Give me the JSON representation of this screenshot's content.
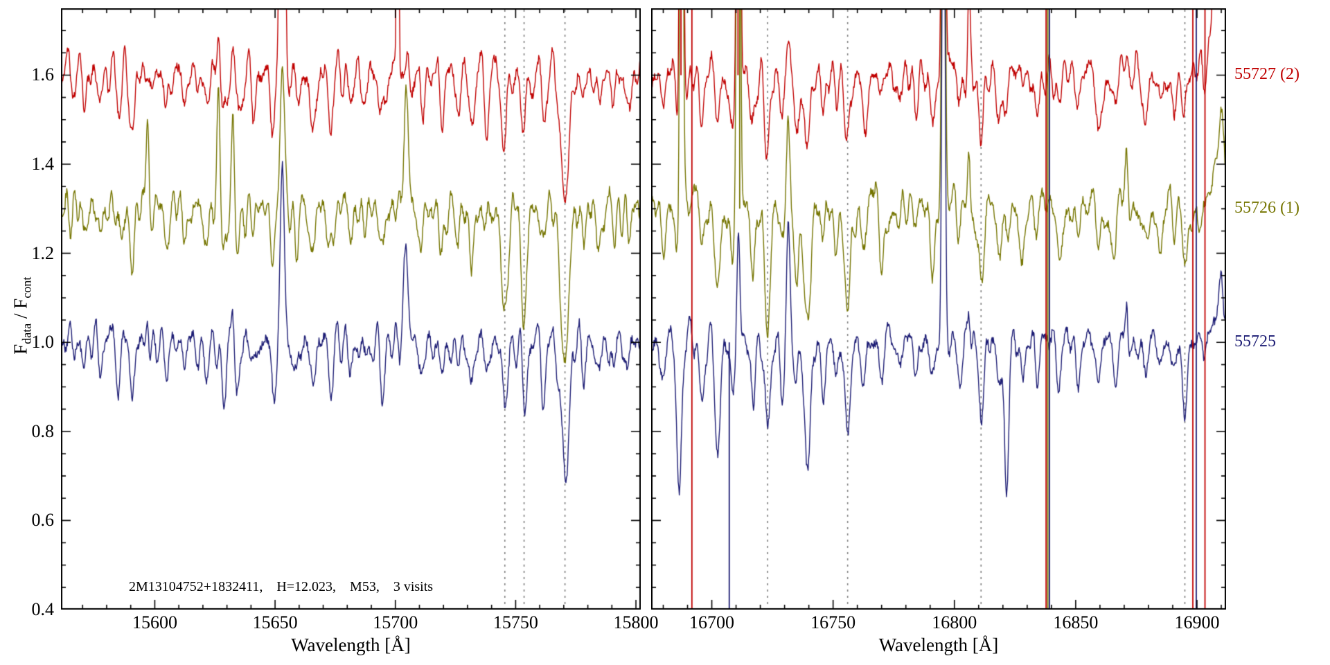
{
  "figure": {
    "ylabel": {
      "f1": "F",
      "s1": "data",
      "mid": " / ",
      "f2": "F",
      "s2": "cont"
    }
  },
  "chart_data": {
    "type": "line",
    "title": "",
    "xlabel": "Wavelength [Å]",
    "ylabel": "F_data / F_cont",
    "annotation": "2M13104752+1832411,    H=12.023,    M53,    3 visits",
    "ylim": [
      0.4,
      1.75
    ],
    "yticks": [
      0.4,
      0.6,
      0.8,
      1.0,
      1.2,
      1.4,
      1.6
    ],
    "y_minor_step": 0.05,
    "x_minor_step": 10,
    "grid": false,
    "legend_position": "right-outside",
    "dashed_line_color": "#7f7f7f",
    "series": [
      {
        "name": "55727 (2)",
        "color": "#c00000",
        "offset": 0.6
      },
      {
        "name": "55726 (1)",
        "color": "#757500",
        "offset": 0.3
      },
      {
        "name": "55725",
        "color": "#1c1c74",
        "offset": 0.0
      }
    ],
    "panels": [
      {
        "xlim": [
          15561,
          15802
        ],
        "xticks": [
          15600,
          15650,
          15700,
          15750,
          15800
        ],
        "dashed_lines": [
          15745.5,
          15753.5,
          15770.5
        ],
        "absorption": [
          {
            "w": 15570.5,
            "d": 0.06,
            "s": 0.9
          },
          {
            "w": 15577.0,
            "d": 0.05,
            "s": 0.8
          },
          {
            "w": 15585.0,
            "d": 0.07,
            "s": 0.9
          },
          {
            "w": 15590.5,
            "d": 0.12,
            "s": 1.0
          },
          {
            "w": 15597.5,
            "d": 0.06,
            "s": 0.8
          },
          {
            "w": 15605.0,
            "d": 0.07,
            "s": 0.9
          },
          {
            "w": 15613.0,
            "d": 0.05,
            "s": 0.8
          },
          {
            "w": 15621.0,
            "d": 0.09,
            "s": 0.9
          },
          {
            "w": 15628.5,
            "d": 0.13,
            "s": 1.0
          },
          {
            "w": 15634.5,
            "d": 0.11,
            "s": 0.9
          },
          {
            "w": 15641.0,
            "d": 0.06,
            "s": 0.8
          },
          {
            "w": 15649.0,
            "d": 0.09,
            "s": 0.9
          },
          {
            "w": 15659.0,
            "d": 0.07,
            "s": 0.9
          },
          {
            "w": 15665.5,
            "d": 0.11,
            "s": 1.0
          },
          {
            "w": 15673.0,
            "d": 0.09,
            "s": 0.9
          },
          {
            "w": 15681.0,
            "d": 0.06,
            "s": 0.8
          },
          {
            "w": 15687.0,
            "d": 0.05,
            "s": 0.8
          },
          {
            "w": 15694.5,
            "d": 0.11,
            "s": 1.0
          },
          {
            "w": 15711.0,
            "d": 0.07,
            "s": 0.9
          },
          {
            "w": 15719.5,
            "d": 0.09,
            "s": 0.9
          },
          {
            "w": 15726.0,
            "d": 0.06,
            "s": 0.8
          },
          {
            "w": 15731.5,
            "d": 0.1,
            "s": 1.0
          },
          {
            "w": 15738.0,
            "d": 0.08,
            "s": 0.9
          },
          {
            "w": 15745.5,
            "d": 0.15,
            "s": 1.1,
            "damps": [
              0.15,
              0.27,
              0.14
            ]
          },
          {
            "w": 15753.5,
            "d": 0.13,
            "s": 1.1,
            "damps": [
              0.12,
              0.25,
              0.13
            ]
          },
          {
            "w": 15761.5,
            "d": 0.09,
            "s": 0.9
          },
          {
            "w": 15770.5,
            "d": 0.3,
            "s": 1.6,
            "damps": [
              0.29,
              0.36,
              0.3
            ]
          },
          {
            "w": 15778.0,
            "d": 0.07,
            "s": 0.9
          },
          {
            "w": 15784.5,
            "d": 0.08,
            "s": 0.9
          },
          {
            "w": 15791.0,
            "d": 0.06,
            "s": 0.8
          },
          {
            "w": 15797.0,
            "d": 0.07,
            "s": 0.9
          }
        ],
        "emission": [
          {
            "w": 15597.0,
            "s": 0.6,
            "amps": [
              0.05,
              0.25,
              0.1
            ]
          },
          {
            "w": 15626.5,
            "s": 0.7,
            "amps": [
              0.12,
              0.27,
              0.0
            ]
          },
          {
            "w": 15632.5,
            "s": 0.6,
            "amps": [
              0.08,
              0.22,
              0.08
            ]
          },
          {
            "w": 15653.0,
            "s": 0.8,
            "amps": [
              1.7,
              0.33,
              0.38
            ]
          },
          {
            "w": 15701.0,
            "s": 0.35,
            "amps": [
              1.7,
              0.0,
              0.0
            ]
          },
          {
            "w": 15704.5,
            "s": 1.1,
            "amps": [
              0.0,
              0.22,
              0.18
            ]
          }
        ],
        "artifacts": []
      },
      {
        "xlim": [
          16675,
          16912
        ],
        "xticks": [
          16700,
          16750,
          16800,
          16850,
          16900
        ],
        "dashed_lines": [
          16723,
          16756,
          16811,
          16895
        ],
        "absorption": [
          {
            "w": 16667.0,
            "d": 0.06,
            "s": 0.9
          },
          {
            "w": 16674.0,
            "d": 0.08,
            "s": 0.9
          },
          {
            "w": 16680.0,
            "d": 0.07,
            "s": 0.9
          },
          {
            "w": 16686.5,
            "d": 0.2,
            "s": 1.0,
            "damps": [
              0.1,
              0.12,
              0.33
            ]
          },
          {
            "w": 16696.0,
            "d": 0.1,
            "s": 0.9
          },
          {
            "w": 16702.5,
            "d": 0.16,
            "s": 1.0,
            "damps": [
              0.12,
              0.15,
              0.25
            ]
          },
          {
            "w": 16708.5,
            "d": 0.12,
            "s": 0.9
          },
          {
            "w": 16717.0,
            "d": 0.1,
            "s": 0.9
          },
          {
            "w": 16723.0,
            "d": 0.18,
            "s": 1.1,
            "damps": [
              0.18,
              0.25,
              0.18
            ]
          },
          {
            "w": 16729.0,
            "d": 0.1,
            "s": 0.9
          },
          {
            "w": 16735.0,
            "d": 0.12,
            "s": 0.9
          },
          {
            "w": 16739.5,
            "d": 0.26,
            "s": 1.2,
            "damps": [
              0.16,
              0.24,
              0.28
            ]
          },
          {
            "w": 16746.0,
            "d": 0.1,
            "s": 0.9
          },
          {
            "w": 16751.0,
            "d": 0.08,
            "s": 0.9
          },
          {
            "w": 16756.0,
            "d": 0.2,
            "s": 1.1,
            "damps": [
              0.15,
              0.22,
              0.22
            ]
          },
          {
            "w": 16763.0,
            "d": 0.09,
            "s": 0.9
          },
          {
            "w": 16770.0,
            "d": 0.07,
            "s": 0.9
          },
          {
            "w": 16777.0,
            "d": 0.06,
            "s": 0.8
          },
          {
            "w": 16784.0,
            "d": 0.06,
            "s": 0.8
          },
          {
            "w": 16791.0,
            "d": 0.07,
            "s": 0.9
          },
          {
            "w": 16802.0,
            "d": 0.08,
            "s": 0.9
          },
          {
            "w": 16811.0,
            "d": 0.14,
            "s": 1.0,
            "damps": [
              0.12,
              0.15,
              0.16
            ]
          },
          {
            "w": 16818.5,
            "d": 0.1,
            "s": 0.9
          },
          {
            "w": 16821.5,
            "d": 0.14,
            "s": 0.8,
            "damps": [
              0.06,
              0.1,
              0.35
            ]
          },
          {
            "w": 16828.0,
            "d": 0.07,
            "s": 0.8
          },
          {
            "w": 16834.0,
            "d": 0.06,
            "s": 0.8
          },
          {
            "w": 16843.0,
            "d": 0.08,
            "s": 0.9
          },
          {
            "w": 16851.0,
            "d": 0.07,
            "s": 0.9
          },
          {
            "w": 16859.5,
            "d": 0.1,
            "s": 0.9
          },
          {
            "w": 16866.0,
            "d": 0.08,
            "s": 0.9
          },
          {
            "w": 16872.0,
            "d": 0.06,
            "s": 0.8
          },
          {
            "w": 16878.5,
            "d": 0.09,
            "s": 0.9
          },
          {
            "w": 16885.0,
            "d": 0.07,
            "s": 0.8
          },
          {
            "w": 16890.5,
            "d": 0.08,
            "s": 0.9
          },
          {
            "w": 16895.0,
            "d": 0.11,
            "s": 1.0,
            "damps": [
              0.1,
              0.12,
              0.14
            ]
          }
        ],
        "emission": [
          {
            "w": 16687.5,
            "s": 0.6,
            "amps": [
              2.0,
              1.6,
              0.0
            ]
          },
          {
            "w": 16711.0,
            "s": 0.6,
            "amps": [
              2.0,
              1.9,
              0.25
            ]
          },
          {
            "w": 16731.5,
            "s": 0.7,
            "amps": [
              0.1,
              0.15,
              0.26
            ]
          },
          {
            "w": 16795.5,
            "s": 0.6,
            "amps": [
              1.6,
              1.6,
              1.3
            ]
          },
          {
            "w": 16806.0,
            "s": 0.5,
            "amps": [
              0.2,
              0.15,
              0.1
            ]
          },
          {
            "w": 16871.0,
            "s": 0.6,
            "amps": [
              0.08,
              0.1,
              0.12
            ]
          },
          {
            "w": 16910.0,
            "s": 2.0,
            "amps": [
              1.2,
              0.18,
              0.12
            ]
          }
        ],
        "artifacts": [
          {
            "w": 16688.0,
            "mode": "up",
            "series": [
              0
            ]
          },
          {
            "w": 16692.5,
            "mode": "both",
            "series": [
              0
            ]
          },
          {
            "w": 16706.5,
            "mode": "down",
            "series": [
              2
            ]
          },
          {
            "w": 16711.5,
            "mode": "up",
            "series": [
              0,
              1
            ]
          },
          {
            "w": 16838.5,
            "mode": "both",
            "series": [
              0,
              1,
              2
            ]
          },
          {
            "w": 16899.0,
            "mode": "both",
            "series": [
              0,
              2
            ]
          },
          {
            "w": 16904.0,
            "mode": "both",
            "series": [
              0
            ]
          }
        ]
      }
    ]
  }
}
